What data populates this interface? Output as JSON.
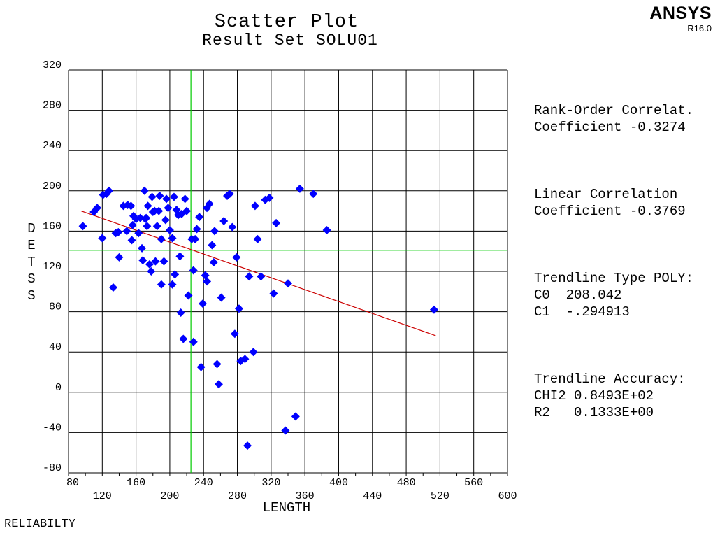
{
  "header": {
    "title": "Scatter Plot",
    "subtitle": "Result Set SOLU01",
    "brand": "ANSYS",
    "version": "R16.0"
  },
  "stats": {
    "rank_order_label": "Rank-Order Correlat.",
    "rank_order_value": "Coefficient -0.3274",
    "linear_label": "Linear Correlation",
    "linear_value": "Coefficient -0.3769",
    "trend_type": "Trendline Type POLY:",
    "c0": "C0  208.042",
    "c1": "C1  -.294913",
    "accuracy_label": "Trendline Accuracy:",
    "chi2": "CHI2 0.8493E+02",
    "r2": "R2   0.1333E+00"
  },
  "footer": {
    "label": "RELIABILTY"
  },
  "colors": {
    "points": "#0000ff",
    "trendline": "#cc0000",
    "mean_lines": "#00cc00",
    "grid": "#000000"
  },
  "chart_data": {
    "type": "scatter",
    "title": "Scatter Plot",
    "subtitle": "Result Set SOLU01",
    "xlabel": "LENGTH",
    "ylabel": "DETSS",
    "xlim": [
      80,
      600
    ],
    "ylim": [
      -80,
      320
    ],
    "x_ticks": [
      80,
      120,
      160,
      200,
      240,
      280,
      320,
      360,
      400,
      440,
      480,
      520,
      560,
      600
    ],
    "y_ticks": [
      -80,
      -40,
      0,
      40,
      80,
      120,
      160,
      200,
      240,
      280,
      320
    ],
    "grid": true,
    "mean_x": 225,
    "mean_y": 141,
    "trendline": {
      "type": "poly",
      "c0": 208.042,
      "c1": -0.294913,
      "x_range": [
        95,
        515
      ]
    },
    "points": [
      [
        97,
        165
      ],
      [
        110,
        179
      ],
      [
        114,
        183
      ],
      [
        120,
        153
      ],
      [
        121,
        196
      ],
      [
        125,
        197
      ],
      [
        128,
        200
      ],
      [
        133,
        104
      ],
      [
        136,
        158
      ],
      [
        139,
        159
      ],
      [
        140,
        134
      ],
      [
        145,
        185
      ],
      [
        149,
        160
      ],
      [
        150,
        186
      ],
      [
        154,
        185
      ],
      [
        155,
        151
      ],
      [
        156,
        166
      ],
      [
        157,
        175
      ],
      [
        160,
        172
      ],
      [
        163,
        158
      ],
      [
        165,
        173
      ],
      [
        167,
        143
      ],
      [
        168,
        131
      ],
      [
        170,
        200
      ],
      [
        171,
        172
      ],
      [
        172,
        173
      ],
      [
        173,
        165
      ],
      [
        174,
        185
      ],
      [
        176,
        127
      ],
      [
        178,
        120
      ],
      [
        179,
        194
      ],
      [
        180,
        179
      ],
      [
        182,
        180
      ],
      [
        183,
        130
      ],
      [
        185,
        165
      ],
      [
        187,
        180
      ],
      [
        188,
        195
      ],
      [
        190,
        107
      ],
      [
        190,
        152
      ],
      [
        193,
        130
      ],
      [
        195,
        171
      ],
      [
        196,
        192
      ],
      [
        198,
        183
      ],
      [
        200,
        161
      ],
      [
        203,
        107
      ],
      [
        203,
        153
      ],
      [
        205,
        194
      ],
      [
        206,
        117
      ],
      [
        208,
        181
      ],
      [
        210,
        176
      ],
      [
        212,
        135
      ],
      [
        213,
        79
      ],
      [
        214,
        177
      ],
      [
        216,
        53
      ],
      [
        218,
        192
      ],
      [
        220,
        180
      ],
      [
        222,
        96
      ],
      [
        226,
        152
      ],
      [
        228,
        50
      ],
      [
        228,
        121
      ],
      [
        230,
        152
      ],
      [
        232,
        162
      ],
      [
        235,
        174
      ],
      [
        237,
        25
      ],
      [
        239,
        88
      ],
      [
        242,
        116
      ],
      [
        244,
        110
      ],
      [
        244,
        183
      ],
      [
        247,
        187
      ],
      [
        250,
        146
      ],
      [
        252,
        129
      ],
      [
        253,
        160
      ],
      [
        256,
        28
      ],
      [
        258,
        8
      ],
      [
        261,
        94
      ],
      [
        264,
        170
      ],
      [
        268,
        195
      ],
      [
        271,
        197
      ],
      [
        274,
        164
      ],
      [
        277,
        58
      ],
      [
        279,
        134
      ],
      [
        282,
        83
      ],
      [
        284,
        31
      ],
      [
        289,
        33
      ],
      [
        292,
        -53
      ],
      [
        294,
        115
      ],
      [
        299,
        40
      ],
      [
        301,
        185
      ],
      [
        304,
        152
      ],
      [
        308,
        115
      ],
      [
        313,
        191
      ],
      [
        318,
        193
      ],
      [
        323,
        98
      ],
      [
        326,
        168
      ],
      [
        337,
        -38
      ],
      [
        340,
        108
      ],
      [
        349,
        -24
      ],
      [
        354,
        202
      ],
      [
        370,
        197
      ],
      [
        386,
        161
      ],
      [
        513,
        82
      ]
    ]
  }
}
